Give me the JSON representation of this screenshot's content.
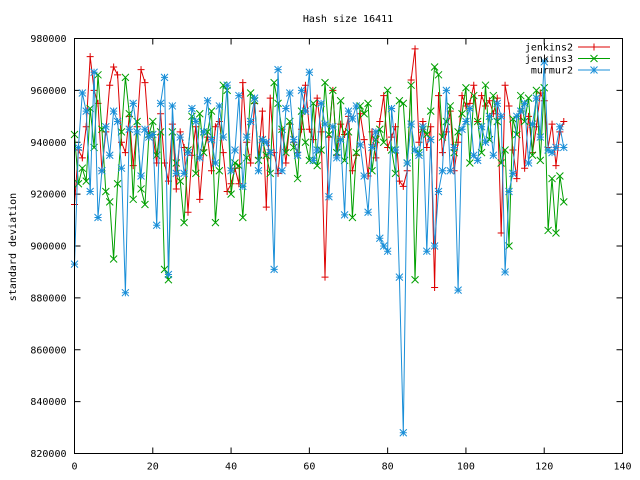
{
  "chart_data": {
    "type": "line",
    "title": "Hash size 16411",
    "xlabel": "",
    "ylabel": "standard deviation",
    "xlim": [
      0,
      140
    ],
    "ylim": [
      820000,
      980000
    ],
    "x_ticks": [
      0,
      20,
      40,
      60,
      80,
      100,
      120,
      140
    ],
    "y_ticks": [
      820000,
      840000,
      860000,
      880000,
      900000,
      920000,
      940000,
      960000,
      980000
    ],
    "x_tick_labels": [
      "0",
      "20",
      "40",
      "60",
      "80",
      "100",
      "120",
      "140"
    ],
    "y_tick_labels": [
      "820000",
      "840000",
      "860000",
      "880000",
      "900000",
      "920000",
      "940000",
      "960000",
      "980000"
    ],
    "grid": false,
    "legend_position": "top-right",
    "series": [
      {
        "name": "jenkins2",
        "color": "#dd0000",
        "marker": "plus",
        "x": [
          0,
          1,
          2,
          3,
          4,
          5,
          6,
          7,
          8,
          9,
          10,
          11,
          12,
          13,
          14,
          15,
          16,
          17,
          18,
          19,
          20,
          21,
          22,
          23,
          24,
          25,
          26,
          27,
          28,
          29,
          30,
          31,
          32,
          33,
          34,
          35,
          36,
          37,
          38,
          39,
          40,
          41,
          42,
          43,
          44,
          45,
          46,
          47,
          48,
          49,
          50,
          51,
          52,
          53,
          54,
          55,
          56,
          57,
          58,
          59,
          60,
          61,
          62,
          63,
          64,
          65,
          66,
          67,
          68,
          69,
          70,
          71,
          72,
          73,
          74,
          75,
          76,
          77,
          78,
          79,
          80,
          81,
          82,
          83,
          84,
          85,
          86,
          87,
          88,
          89,
          90,
          91,
          92,
          93,
          94,
          95,
          96,
          97,
          98,
          99,
          100,
          101,
          102,
          103,
          104,
          105,
          106,
          107,
          108,
          109,
          110,
          111,
          112,
          113,
          114,
          115,
          116,
          117,
          118,
          119,
          120,
          121,
          122,
          123,
          124,
          125
        ],
        "values": [
          916000,
          937000,
          934000,
          946000,
          973000,
          960000,
          955000,
          929000,
          944000,
          962000,
          969000,
          966000,
          940000,
          936000,
          950000,
          931000,
          946000,
          968000,
          963000,
          942000,
          943000,
          932000,
          951000,
          932000,
          925000,
          947000,
          922000,
          944000,
          938000,
          913000,
          935000,
          946000,
          918000,
          937000,
          942000,
          929000,
          946000,
          948000,
          936000,
          921000,
          924000,
          930000,
          924000,
          963000,
          940000,
          932000,
          955000,
          934000,
          952000,
          915000,
          957000,
          936000,
          928000,
          945000,
          932000,
          947000,
          940000,
          936000,
          945000,
          962000,
          945000,
          941000,
          957000,
          944000,
          888000,
          942000,
          960000,
          935000,
          947000,
          943000,
          950000,
          929000,
          935000,
          951000,
          941000,
          927000,
          944000,
          934000,
          948000,
          958000,
          938000,
          942000,
          946000,
          925000,
          923000,
          929000,
          964000,
          976000,
          940000,
          948000,
          938000,
          946000,
          884000,
          958000,
          936000,
          944000,
          952000,
          929000,
          940000,
          958000,
          954000,
          955000,
          962000,
          948000,
          958000,
          954000,
          956000,
          951000,
          957000,
          905000,
          962000,
          954000,
          937000,
          926000,
          952000,
          930000,
          950000,
          936000,
          946000,
          959000,
          956000,
          938000,
          947000,
          931000,
          944000,
          948000
        ]
      },
      {
        "name": "jenkins3",
        "color": "#00a000",
        "marker": "x",
        "x": [
          0,
          1,
          2,
          3,
          4,
          5,
          6,
          7,
          8,
          9,
          10,
          11,
          12,
          13,
          14,
          15,
          16,
          17,
          18,
          19,
          20,
          21,
          22,
          23,
          24,
          25,
          26,
          27,
          28,
          29,
          30,
          31,
          32,
          33,
          34,
          35,
          36,
          37,
          38,
          39,
          40,
          41,
          42,
          43,
          44,
          45,
          46,
          47,
          48,
          49,
          50,
          51,
          52,
          53,
          54,
          55,
          56,
          57,
          58,
          59,
          60,
          61,
          62,
          63,
          64,
          65,
          66,
          67,
          68,
          69,
          70,
          71,
          72,
          73,
          74,
          75,
          76,
          77,
          78,
          79,
          80,
          81,
          82,
          83,
          84,
          85,
          86,
          87,
          88,
          89,
          90,
          91,
          92,
          93,
          94,
          95,
          96,
          97,
          98,
          99,
          100,
          101,
          102,
          103,
          104,
          105,
          106,
          107,
          108,
          109,
          110,
          111,
          112,
          113,
          114,
          115,
          116,
          117,
          118,
          119,
          120,
          121,
          122,
          123,
          124,
          125
        ],
        "values": [
          943000,
          924000,
          930000,
          925000,
          953000,
          938000,
          966000,
          945000,
          921000,
          917000,
          895000,
          924000,
          944000,
          965000,
          951000,
          918000,
          948000,
          922000,
          916000,
          943000,
          948000,
          935000,
          944000,
          891000,
          887000,
          944000,
          932000,
          925000,
          909000,
          937000,
          950000,
          928000,
          951000,
          936000,
          944000,
          952000,
          909000,
          929000,
          962000,
          960000,
          920000,
          932000,
          931000,
          911000,
          934000,
          959000,
          956000,
          933000,
          941000,
          935000,
          928000,
          963000,
          955000,
          945000,
          936000,
          948000,
          938000,
          926000,
          952000,
          940000,
          933000,
          955000,
          931000,
          937000,
          963000,
          943000,
          960000,
          936000,
          956000,
          933000,
          944000,
          911000,
          936000,
          954000,
          951000,
          955000,
          929000,
          941000,
          945000,
          940000,
          960000,
          937000,
          928000,
          956000,
          955000,
          932000,
          962000,
          887000,
          936000,
          945000,
          943000,
          952000,
          969000,
          966000,
          942000,
          948000,
          954000,
          936000,
          944000,
          951000,
          961000,
          932000,
          958000,
          948000,
          936000,
          962000,
          941000,
          958000,
          948000,
          932000,
          937000,
          900000,
          949000,
          943000,
          958000,
          948000,
          957000,
          935000,
          960000,
          933000,
          961000,
          906000,
          926000,
          905000,
          927000,
          917000
        ]
      },
      {
        "name": "murmur2",
        "color": "#1a8fd8",
        "marker": "star",
        "x": [
          0,
          1,
          2,
          3,
          4,
          5,
          6,
          7,
          8,
          9,
          10,
          11,
          12,
          13,
          14,
          15,
          16,
          17,
          18,
          19,
          20,
          21,
          22,
          23,
          24,
          25,
          26,
          27,
          28,
          29,
          30,
          31,
          32,
          33,
          34,
          35,
          36,
          37,
          38,
          39,
          40,
          41,
          42,
          43,
          44,
          45,
          46,
          47,
          48,
          49,
          50,
          51,
          52,
          53,
          54,
          55,
          56,
          57,
          58,
          59,
          60,
          61,
          62,
          63,
          64,
          65,
          66,
          67,
          68,
          69,
          70,
          71,
          72,
          73,
          74,
          75,
          76,
          77,
          78,
          79,
          80,
          81,
          82,
          83,
          84,
          85,
          86,
          87,
          88,
          89,
          90,
          91,
          92,
          93,
          94,
          95,
          96,
          97,
          98,
          99,
          100,
          101,
          102,
          103,
          104,
          105,
          106,
          107,
          108,
          109,
          110,
          111,
          112,
          113,
          114,
          115,
          116,
          117,
          118,
          119,
          120,
          121,
          122,
          123,
          124,
          125
        ],
        "values": [
          893000,
          938000,
          959000,
          952000,
          921000,
          967000,
          911000,
          929000,
          946000,
          935000,
          952000,
          948000,
          930000,
          882000,
          945000,
          955000,
          944000,
          927000,
          945000,
          942000,
          943000,
          908000,
          955000,
          965000,
          889000,
          954000,
          928000,
          942000,
          928000,
          936000,
          953000,
          948000,
          934000,
          944000,
          956000,
          941000,
          932000,
          954000,
          942000,
          962000,
          929000,
          937000,
          958000,
          923000,
          942000,
          948000,
          957000,
          929000,
          941000,
          940000,
          936000,
          891000,
          968000,
          929000,
          953000,
          959000,
          941000,
          935000,
          960000,
          952000,
          967000,
          933000,
          937000,
          955000,
          947000,
          919000,
          946000,
          934000,
          941000,
          912000,
          952000,
          949000,
          954000,
          939000,
          927000,
          913000,
          938000,
          944000,
          903000,
          900000,
          898000,
          953000,
          937000,
          888000,
          828000,
          932000,
          947000,
          937000,
          935000,
          946000,
          898000,
          941000,
          900000,
          921000,
          929000,
          960000,
          929000,
          938000,
          883000,
          945000,
          948000,
          953000,
          935000,
          933000,
          946000,
          940000,
          950000,
          935000,
          955000,
          950000,
          890000,
          921000,
          928000,
          950000,
          952000,
          955000,
          932000,
          947000,
          957000,
          942000,
          971000,
          937000,
          936000,
          938000,
          946000,
          938000
        ]
      }
    ]
  }
}
